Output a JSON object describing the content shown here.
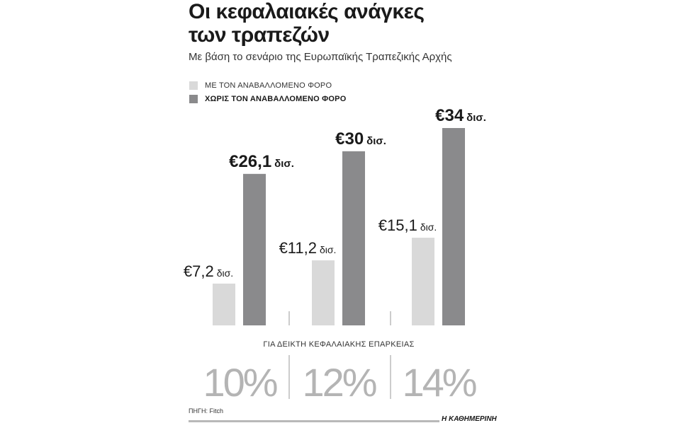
{
  "title_lines": [
    "Οι κεφαλαιακές ανάγκες",
    "των τραπεζών"
  ],
  "subtitle": "Με βάση το σενάριο της Ευρωπαϊκής Τραπεζικής Αρχής",
  "source": "ΠΗΓΗ: Fitch",
  "brand": "Η ΚΑΘΗΜΕΡΙΝΗ",
  "chart_data": {
    "type": "bar",
    "x_title": "ΓΙΑ ΔΕΙΚΤΗ ΚΕΦΑΛΑΙΑΚΗΣ ΕΠΑΡΚΕΙΑΣ",
    "categories": [
      "10%",
      "12%",
      "14%"
    ],
    "ylim": [
      0,
      34
    ],
    "unit": "δισ.",
    "currency": "€",
    "grid": false,
    "legend_position": "top-left",
    "series": [
      {
        "name": "ΜΕ ΤΟΝ ΑΝΑΒΑΛΛΟΜΕΝΟ ΦΟΡΟ",
        "color": "#d9d9d9",
        "values": [
          7.2,
          11.2,
          15.1
        ],
        "value_labels": [
          "7,2",
          "11,2",
          "15,1"
        ]
      },
      {
        "name": "ΧΩΡΙΣ ΤΟΝ ΑΝΑΒΑΛΛΟΜΕΝΟ ΦΟΡΟ",
        "color": "#8a8a8c",
        "values": [
          26.1,
          30,
          34
        ],
        "value_labels": [
          "26,1",
          "30",
          "34"
        ]
      }
    ]
  }
}
